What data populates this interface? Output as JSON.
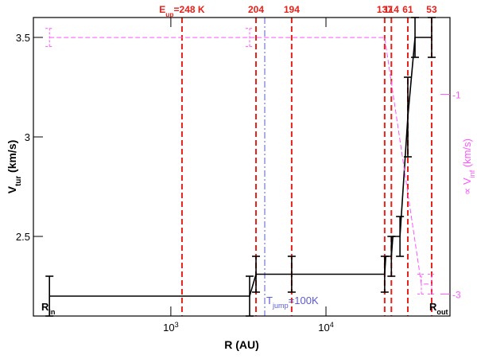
{
  "chart_data": {
    "type": "line",
    "x_label": "R (AU)",
    "y_label": {
      "main": "V",
      "sub": "tur",
      "unit": " (km/s)"
    },
    "y2_label": {
      "prefix": "∝ ",
      "main": "V",
      "sub": "inf",
      "unit": " (km/s)"
    },
    "xlog": true,
    "xlim": [
      130,
      63000
    ],
    "xticks": [
      {
        "value": 1000,
        "label": "10",
        "exp": "3"
      },
      {
        "value": 10000,
        "label": "10",
        "exp": "4"
      }
    ],
    "ylim": [
      2.1,
      3.6
    ],
    "yticks": [
      2.5,
      3,
      3.5
    ],
    "y2lim": [
      -3.22,
      -0.23
    ],
    "y2ticks": [
      -1,
      -3
    ],
    "series": [
      {
        "color": "#000000",
        "x": [
          165,
          3220,
          3540,
          6010,
          23900,
          24300,
          26400,
          27000,
          30000,
          33700,
          37500,
          48000
        ],
        "values": [
          2.2,
          2.2,
          2.31,
          2.31,
          2.31,
          2.4,
          2.4,
          2.5,
          2.5,
          3.1,
          3.5,
          3.5
        ],
        "errors": [
          0.1,
          0.1,
          0.09,
          0.09,
          0.09,
          null,
          0.1,
          null,
          0.1,
          0.2,
          0.1,
          0.1
        ]
      },
      {
        "color": "#ff55ff",
        "axis": "y2",
        "dashed": true,
        "x": [
          165,
          3220,
          23900,
          41200,
          48000
        ],
        "values": [
          -0.43,
          -0.43,
          -0.43,
          -2.9,
          -2.9
        ],
        "errors": [
          0.09,
          0.09,
          null,
          0.1,
          0.1
        ]
      }
    ],
    "energy_lines": {
      "color": "#e8201a",
      "prefix": {
        "main": "E",
        "sub": "up"
      },
      "x": [
        1180,
        3540,
        6010,
        23900,
        26400,
        33700,
        48000
      ],
      "labels": [
        "=248 K",
        "204",
        "194",
        "137",
        "114",
        "61",
        "53"
      ]
    },
    "tjump": {
      "color": "#5a5ad8",
      "x": 4030,
      "main": "T",
      "sub": "jump",
      "text": "=100K"
    },
    "r_in": {
      "main": "R",
      "sub": "in"
    },
    "r_out": {
      "main": "R",
      "sub": "out"
    }
  }
}
